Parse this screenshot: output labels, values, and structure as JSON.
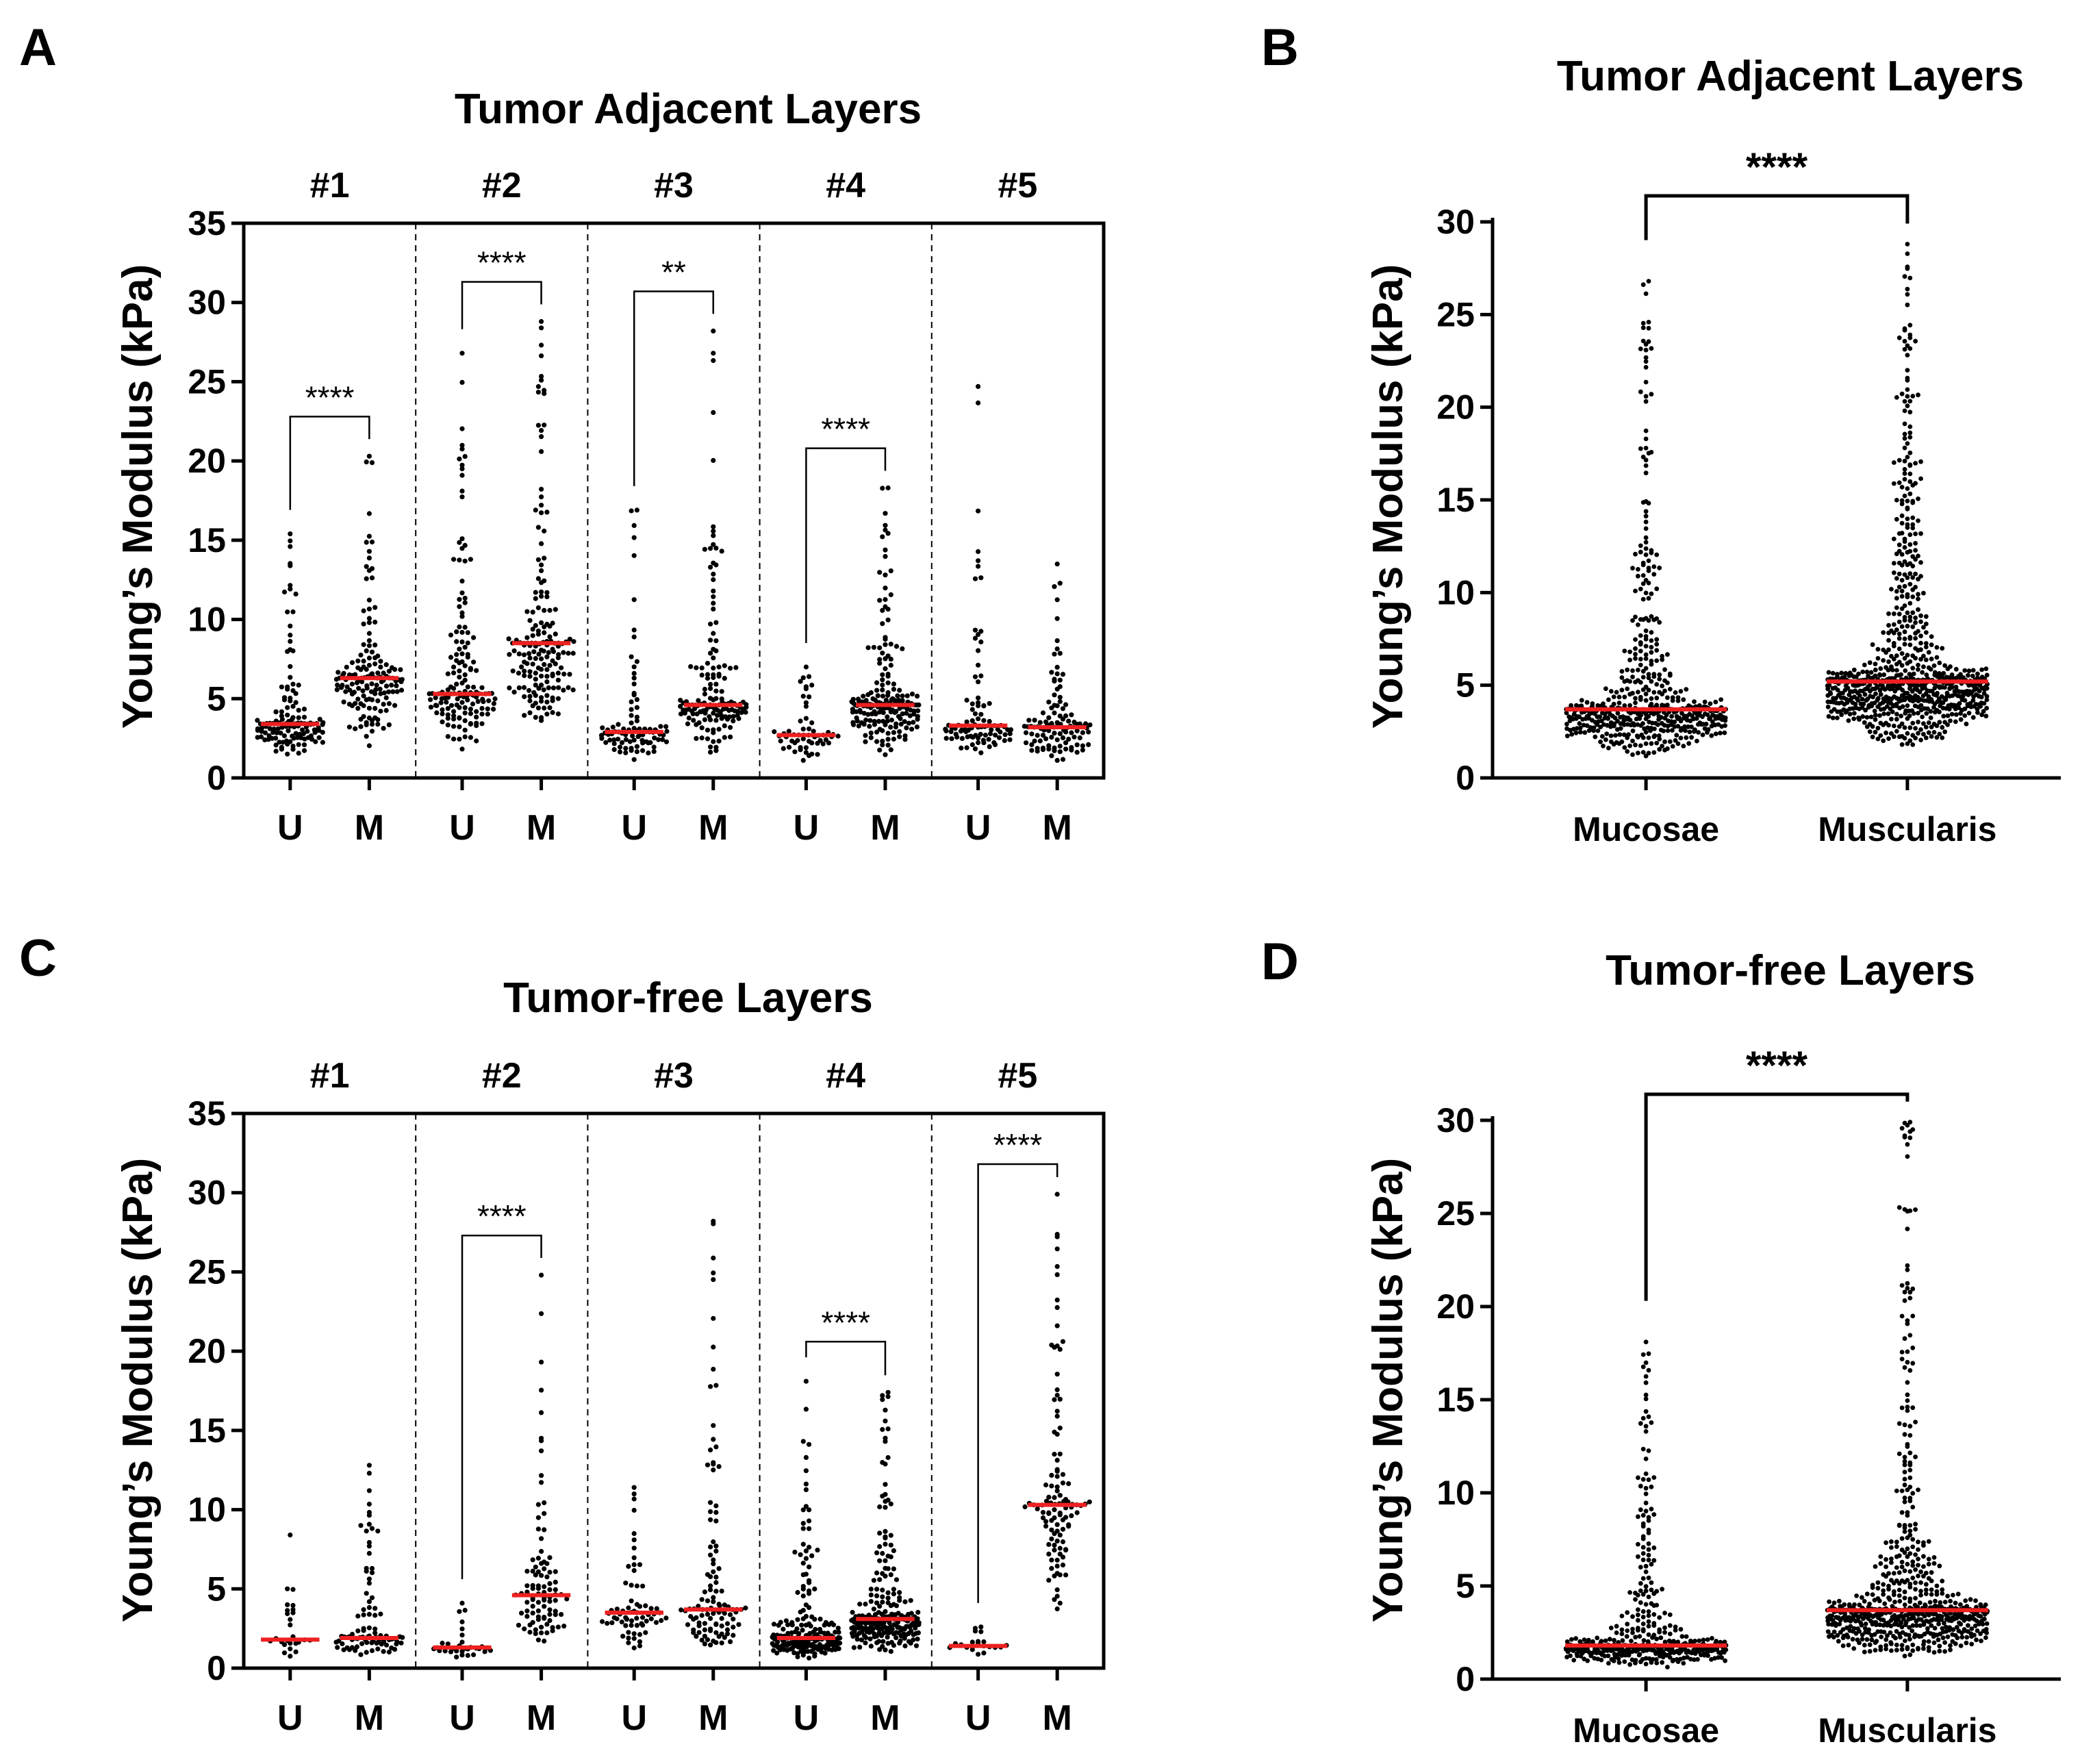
{
  "colors": {
    "median": "#ee2020",
    "points": "#000000",
    "axis": "#000000"
  },
  "chart_data": [
    {
      "panel": "A",
      "type": "scatter",
      "title": "Tumor Adjacent Layers",
      "ylabel": "Young’s Modulus (kPa)",
      "ylim": [
        0,
        35
      ],
      "yticks": [
        "0",
        "5",
        "10",
        "15",
        "20",
        "25",
        "30",
        "35"
      ],
      "groups": [
        {
          "label": "#1",
          "significance": "****",
          "series": [
            {
              "name": "U",
              "median": 3.4,
              "n": 130,
              "max": 15.4
            },
            {
              "name": "M",
              "median": 6.3,
              "n": 150,
              "max": 20.3
            }
          ]
        },
        {
          "label": "#2",
          "significance": "****",
          "series": [
            {
              "name": "U",
              "median": 5.3,
              "n": 150,
              "max": 26.8
            },
            {
              "name": "M",
              "median": 8.5,
              "n": 170,
              "max": 28.8
            }
          ]
        },
        {
          "label": "#3",
          "significance": "**",
          "series": [
            {
              "name": "U",
              "median": 2.9,
              "n": 90,
              "max": 16.9
            },
            {
              "name": "M",
              "median": 4.6,
              "n": 150,
              "max": 28.2
            }
          ]
        },
        {
          "label": "#4",
          "significance": "****",
          "series": [
            {
              "name": "U",
              "median": 2.7,
              "n": 55,
              "max": 7.0
            },
            {
              "name": "M",
              "median": 4.6,
              "n": 190,
              "max": 18.3
            }
          ]
        },
        {
          "label": "#5",
          "significance": "",
          "series": [
            {
              "name": "U",
              "median": 3.3,
              "n": 90,
              "max": 24.7
            },
            {
              "name": "M",
              "median": 3.2,
              "n": 110,
              "max": 13.5
            }
          ]
        }
      ]
    },
    {
      "panel": "B",
      "type": "scatter",
      "title": "Tumor Adjacent Layers",
      "ylabel": "Young’s Modulus (kPa)",
      "ylim": [
        0,
        30
      ],
      "yticks": [
        "0",
        "5",
        "10",
        "15",
        "20",
        "25",
        "30"
      ],
      "significance": "****",
      "series": [
        {
          "name": "Mucosae",
          "median": 3.7,
          "n": 520,
          "max": 26.8
        },
        {
          "name": "Muscularis",
          "median": 5.2,
          "n": 780,
          "max": 28.8
        }
      ]
    },
    {
      "panel": "C",
      "type": "scatter",
      "title": "Tumor-free Layers",
      "ylabel": "Young’s Modulus (kPa)",
      "ylim": [
        0,
        35
      ],
      "yticks": [
        "0",
        "5",
        "10",
        "15",
        "20",
        "25",
        "30",
        "35"
      ],
      "groups": [
        {
          "label": "#1",
          "significance": "",
          "series": [
            {
              "name": "U",
              "median": 1.8,
              "n": 25,
              "max": 8.4
            },
            {
              "name": "M",
              "median": 1.9,
              "n": 90,
              "max": 12.8
            }
          ]
        },
        {
          "label": "#2",
          "significance": "****",
          "series": [
            {
              "name": "U",
              "median": 1.3,
              "n": 30,
              "max": 4.1
            },
            {
              "name": "M",
              "median": 4.6,
              "n": 95,
              "max": 24.8
            }
          ]
        },
        {
          "label": "#3",
          "significance": "",
          "series": [
            {
              "name": "U",
              "median": 3.5,
              "n": 65,
              "max": 11.4
            },
            {
              "name": "M",
              "median": 3.7,
              "n": 110,
              "max": 28.2
            }
          ]
        },
        {
          "label": "#4",
          "significance": "****",
          "series": [
            {
              "name": "U",
              "median": 1.9,
              "n": 210,
              "max": 18.1
            },
            {
              "name": "M",
              "median": 3.1,
              "n": 240,
              "max": 17.4
            }
          ]
        },
        {
          "label": "#5",
          "significance": "****",
          "series": [
            {
              "name": "U",
              "median": 1.4,
              "n": 20,
              "max": 2.6
            },
            {
              "name": "M",
              "median": 10.3,
              "n": 110,
              "max": 29.9
            }
          ]
        }
      ]
    },
    {
      "panel": "D",
      "type": "scatter",
      "title": "Tumor-free Layers",
      "ylabel": "Young’s Modulus (kPa)",
      "ylim": [
        0,
        30
      ],
      "yticks": [
        "0",
        "5",
        "10",
        "15",
        "20",
        "25",
        "30"
      ],
      "significance": "****",
      "series": [
        {
          "name": "Mucosae",
          "median": 1.8,
          "n": 420,
          "max": 18.1
        },
        {
          "name": "Muscularis",
          "median": 3.7,
          "n": 650,
          "max": 29.9
        }
      ]
    }
  ]
}
